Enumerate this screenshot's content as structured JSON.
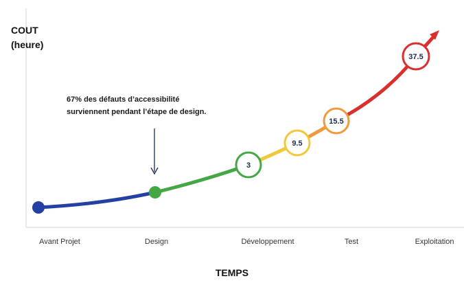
{
  "chart_data": {
    "type": "line",
    "ylabel_line1": "COUT",
    "ylabel_line2": "(heure)",
    "xlabel": "TEMPS",
    "annotation_line1": "67% des défauts d’accessibilité",
    "annotation_line2": "surviennent pendant l’étape de design.",
    "categories": [
      "Avant Projet",
      "Design",
      "Développement",
      "Test",
      "Exploitation"
    ],
    "points": [
      {
        "label": "",
        "color": "#2341a3",
        "style": "dot"
      },
      {
        "label": "",
        "color": "#43a743",
        "style": "dot"
      },
      {
        "label": "3",
        "color": "#43a743",
        "style": "ring"
      },
      {
        "label": "9.5",
        "color": "#f0c93a",
        "style": "ring"
      },
      {
        "label": "15.5",
        "color": "#ee9a3c",
        "style": "ring"
      },
      {
        "label": "37.5",
        "color": "#d92f2f",
        "style": "ring"
      }
    ],
    "segment_colors": [
      "#2341a3",
      "#43a743",
      "#f0c93a",
      "#ee9a3c",
      "#d92f2f"
    ],
    "grid": false
  }
}
